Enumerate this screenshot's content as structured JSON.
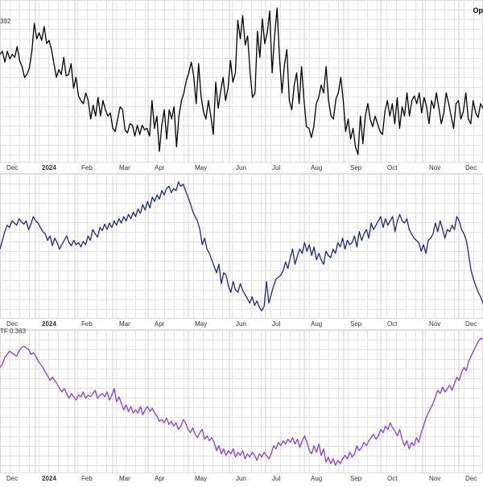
{
  "corner_label": "Op",
  "chart_data": [
    {
      "type": "line",
      "panel_label": "392",
      "x_ticks": [
        "Dec",
        "2024",
        "Feb",
        "Mar",
        "Apr",
        "May",
        "Jun",
        "Jul",
        "Aug",
        "Sep",
        "Oct",
        "Nov",
        "Dec"
      ],
      "series": [
        {
          "color": "#000000",
          "values": [
            70,
            72,
            65,
            72,
            67,
            70,
            68,
            75,
            66,
            62,
            55,
            57,
            61,
            72,
            90,
            80,
            84,
            79,
            88,
            77,
            79,
            73,
            64,
            55,
            60,
            57,
            68,
            56,
            57,
            64,
            48,
            55,
            43,
            40,
            38,
            45,
            40,
            28,
            37,
            30,
            42,
            30,
            40,
            34,
            30,
            32,
            22,
            20,
            28,
            36,
            34,
            21,
            19,
            25,
            24,
            17,
            24,
            18,
            24,
            21,
            22,
            17,
            40,
            22,
            30,
            7,
            24,
            34,
            15,
            34,
            28,
            36,
            10,
            30,
            40,
            45,
            53,
            58,
            65,
            56,
            38,
            64,
            43,
            33,
            28,
            40,
            30,
            18,
            52,
            35,
            46,
            55,
            40,
            48,
            66,
            52,
            58,
            92,
            80,
            95,
            76,
            82,
            58,
            42,
            45,
            85,
            68,
            93,
            77,
            84,
            98,
            58,
            82,
            100,
            68,
            45,
            63,
            73,
            40,
            34,
            50,
            58,
            38,
            62,
            40,
            23,
            22,
            16,
            23,
            38,
            42,
            50,
            45,
            62,
            40,
            30,
            28,
            41,
            45,
            55,
            40,
            20,
            28,
            15,
            22,
            10,
            5,
            30,
            12,
            30,
            38,
            28,
            23,
            30,
            25,
            20,
            18,
            33,
            40,
            30,
            38,
            25,
            42,
            22,
            36,
            30,
            45,
            30,
            40,
            43,
            38,
            45,
            32,
            42,
            36,
            25,
            40,
            35,
            45,
            35,
            25,
            32,
            45,
            38,
            30,
            22,
            38,
            40,
            28,
            33,
            45,
            28,
            25,
            40,
            32,
            29,
            38,
            35
          ]
        }
      ]
    },
    {
      "type": "line",
      "panel_label": "",
      "x_ticks": [
        "Dec",
        "2024",
        "Feb",
        "Mar",
        "Apr",
        "May",
        "Jun",
        "Jul",
        "Aug",
        "Sep",
        "Oct",
        "Nov",
        "Dec"
      ],
      "series": [
        {
          "color": "#1f2a7a",
          "values": [
            62,
            70,
            78,
            84,
            82,
            88,
            86,
            84,
            90,
            87,
            85,
            88,
            80,
            85,
            92,
            88,
            86,
            82,
            78,
            76,
            70,
            74,
            65,
            72,
            68,
            62,
            66,
            70,
            74,
            68,
            65,
            70,
            66,
            68,
            64,
            69,
            66,
            74,
            70,
            80,
            76,
            73,
            82,
            79,
            85,
            80,
            86,
            82,
            88,
            84,
            90,
            86,
            92,
            88,
            94,
            90,
            96,
            92,
            99,
            95,
            103,
            98,
            106,
            100,
            110,
            106,
            112,
            108,
            116,
            112,
            118,
            120,
            114,
            118,
            116,
            124,
            120,
            122,
            116,
            110,
            104,
            97,
            92,
            88,
            80,
            66,
            72,
            62,
            58,
            52,
            46,
            40,
            48,
            30,
            40,
            38,
            28,
            22,
            32,
            24,
            22,
            30,
            24,
            20,
            16,
            12,
            18,
            10,
            14,
            8,
            5,
            9,
            32,
            12,
            20,
            28,
            34,
            36,
            38,
            42,
            50,
            44,
            54,
            62,
            48,
            56,
            62,
            58,
            68,
            60,
            66,
            56,
            64,
            52,
            58,
            52,
            48,
            60,
            56,
            54,
            62,
            58,
            68,
            64,
            72,
            62,
            70,
            66,
            68,
            74,
            64,
            78,
            70,
            76,
            80,
            72,
            86,
            80,
            84,
            88,
            92,
            82,
            90,
            84,
            88,
            92,
            78,
            88,
            94,
            88,
            86,
            90,
            80,
            76,
            72,
            70,
            68,
            60,
            66,
            58,
            70,
            72,
            76,
            86,
            78,
            88,
            80,
            72,
            80,
            78,
            84,
            80,
            92,
            88,
            80,
            76,
            70,
            56,
            42,
            34,
            28,
            22,
            18,
            12
          ]
        }
      ]
    },
    {
      "type": "line",
      "panel_label": "TF 0.363",
      "x_ticks": [
        "Dec",
        "2024",
        "Feb",
        "Mar",
        "Apr",
        "May",
        "Jun",
        "Jul",
        "Aug",
        "Sep",
        "Oct",
        "Nov",
        "Dec"
      ],
      "series": [
        {
          "color": "#8a3fd0",
          "values": [
            0.18,
            0.2,
            0.24,
            0.26,
            0.28,
            0.27,
            0.26,
            0.25,
            0.28,
            0.3,
            0.31,
            0.3,
            0.29,
            0.26,
            0.27,
            0.25,
            0.22,
            0.2,
            0.18,
            0.15,
            0.13,
            0.1,
            0.12,
            0.1,
            0.08,
            0.05,
            0.03,
            0.05,
            0.02,
            -0.01,
            0.02,
            0.0,
            -0.02,
            0.01,
            0.0,
            0.03,
            -0.01,
            0.01,
            0.0,
            0.02,
            0.04,
            -0.01,
            0.01,
            0.02,
            0.0,
            0.03,
            -0.02,
            0.01,
            0.05,
            -0.03,
            0.0,
            -0.04,
            -0.08,
            -0.05,
            -0.09,
            -0.06,
            -0.1,
            -0.08,
            -0.1,
            -0.06,
            -0.11,
            -0.08,
            -0.06,
            -0.09,
            -0.07,
            -0.1,
            -0.12,
            -0.15,
            -0.14,
            -0.16,
            -0.13,
            -0.17,
            -0.15,
            -0.18,
            -0.16,
            -0.2,
            -0.18,
            -0.14,
            -0.16,
            -0.2,
            -0.22,
            -0.19,
            -0.23,
            -0.25,
            -0.22,
            -0.2,
            -0.26,
            -0.24,
            -0.27,
            -0.25,
            -0.28,
            -0.33,
            -0.3,
            -0.35,
            -0.32,
            -0.36,
            -0.33,
            -0.35,
            -0.32,
            -0.37,
            -0.34,
            -0.36,
            -0.33,
            -0.38,
            -0.35,
            -0.37,
            -0.34,
            -0.36,
            -0.39,
            -0.35,
            -0.37,
            -0.34,
            -0.36,
            -0.38,
            -0.35,
            -0.3,
            -0.32,
            -0.28,
            -0.3,
            -0.27,
            -0.29,
            -0.26,
            -0.28,
            -0.25,
            -0.29,
            -0.26,
            -0.31,
            -0.27,
            -0.24,
            -0.28,
            -0.33,
            -0.35,
            -0.3,
            -0.34,
            -0.29,
            -0.36,
            -0.32,
            -0.4,
            -0.37,
            -0.41,
            -0.38,
            -0.42,
            -0.39,
            -0.41,
            -0.38,
            -0.36,
            -0.38,
            -0.34,
            -0.37,
            -0.35,
            -0.3,
            -0.33,
            -0.31,
            -0.28,
            -0.3,
            -0.27,
            -0.25,
            -0.23,
            -0.26,
            -0.24,
            -0.2,
            -0.22,
            -0.18,
            -0.2,
            -0.16,
            -0.19,
            -0.21,
            -0.24,
            -0.2,
            -0.26,
            -0.3,
            -0.27,
            -0.32,
            -0.28,
            -0.3,
            -0.25,
            -0.28,
            -0.22,
            -0.18,
            -0.13,
            -0.1,
            -0.07,
            -0.04,
            0.0,
            0.04,
            0.02,
            0.06,
            0.03,
            0.05,
            0.07,
            0.04,
            0.08,
            0.12,
            0.1,
            0.15,
            0.18,
            0.16,
            0.22,
            0.25,
            0.28,
            0.31,
            0.34,
            0.36,
            0.35
          ]
        }
      ]
    }
  ]
}
